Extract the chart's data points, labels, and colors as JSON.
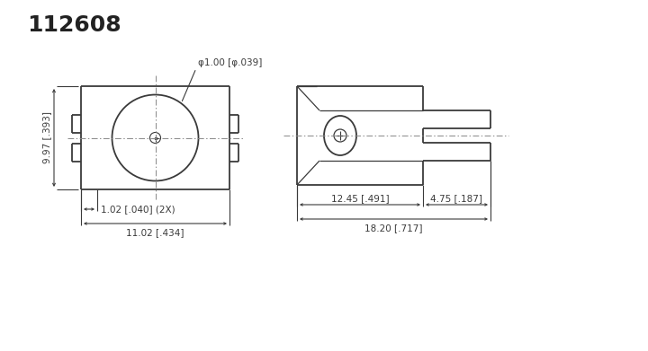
{
  "title": "112608",
  "bg_color": "#ffffff",
  "line_color": "#3a3a3a",
  "dim_color": "#3a3a3a",
  "centerline_color": "#888888",
  "lw_main": 1.3,
  "lw_dim": 0.8,
  "lw_cl": 0.7,
  "fontsize_title": 18,
  "fontsize_dim": 7.5,
  "annotations": {
    "diameter_label": "φ1.00 [φ.039]",
    "height_label": "9.97 [.393]",
    "offset_label": "1.02 [.040] (2X)",
    "width_label": "11.02 [.434]",
    "width2_label": "12.45 [.491]",
    "width3_label": "4.75 [.187]",
    "width4_label": "18.20 [.717]"
  }
}
